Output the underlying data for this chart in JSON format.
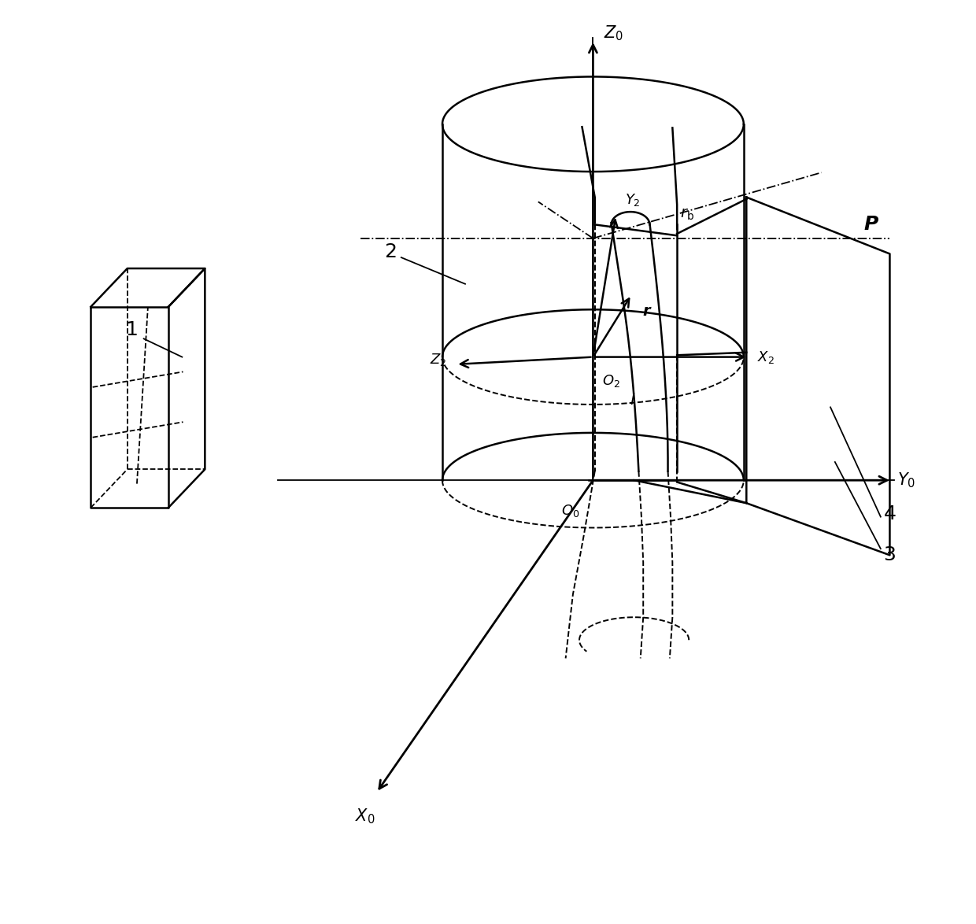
{
  "bg_color": "#ffffff",
  "line_color": "#000000",
  "lw": 1.8,
  "lw_thin": 1.3,
  "lw_thick": 2.0,
  "fig_width": 12.4,
  "fig_height": 11.74
}
